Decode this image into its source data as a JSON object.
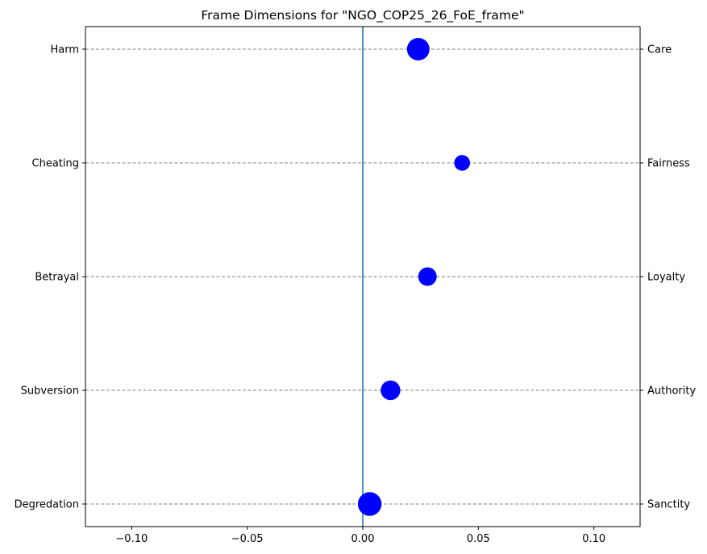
{
  "chart_data": {
    "type": "scatter",
    "title": "Frame Dimensions for \"NGO_COP25_26_FoE_frame\"",
    "xlabel": "",
    "ylabel": "",
    "xlim": [
      -0.12,
      0.12
    ],
    "x_ticks": [
      -0.1,
      -0.05,
      0.0,
      0.05,
      0.1
    ],
    "x_tick_labels": [
      "−0.10",
      "−0.05",
      "0.00",
      "0.05",
      "0.10"
    ],
    "left_labels": [
      "Harm",
      "Cheating",
      "Betrayal",
      "Subversion",
      "Degredation"
    ],
    "right_labels": [
      "Care",
      "Fairness",
      "Loyalty",
      "Authority",
      "Sanctity"
    ],
    "points": [
      {
        "category": "Care",
        "x": 0.024,
        "size": 1.0
      },
      {
        "category": "Fairness",
        "x": 0.043,
        "size": 0.7
      },
      {
        "category": "Loyalty",
        "x": 0.028,
        "size": 0.82
      },
      {
        "category": "Authority",
        "x": 0.012,
        "size": 0.87
      },
      {
        "category": "Sanctity",
        "x": 0.003,
        "size": 1.05
      }
    ],
    "reference_line_x": 0.0,
    "grid": "horizontal dashed",
    "marker_color": "#0000ff",
    "reference_line_color": "#1f77b4",
    "grid_color": "#808080"
  }
}
